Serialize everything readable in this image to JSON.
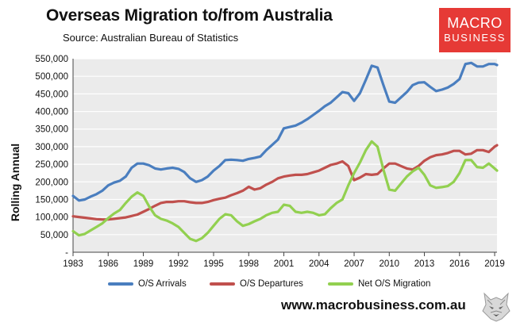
{
  "chart_data": {
    "type": "line",
    "title": "Overseas Migration to/from Australia",
    "subtitle": "Source: Australian Bureau of Statistics",
    "xlabel": "",
    "ylabel": "Rolling Annual",
    "xlim": [
      1983,
      2019.2
    ],
    "ylim": [
      0,
      550000
    ],
    "grid": true,
    "legend_position": "bottom",
    "x_ticks": [
      "1983",
      "1986",
      "1989",
      "1992",
      "1995",
      "1998",
      "2001",
      "2004",
      "2007",
      "2010",
      "2013",
      "2016",
      "2019"
    ],
    "y_ticks": [
      "-",
      "50,000",
      "100,000",
      "150,000",
      "200,000",
      "250,000",
      "300,000",
      "350,000",
      "400,000",
      "450,000",
      "500,000",
      "550,000"
    ],
    "series": [
      {
        "name": "O/S Arrivals",
        "color": "#4a7ebf",
        "points": [
          [
            1983,
            160000
          ],
          [
            1983.5,
            147000
          ],
          [
            1984,
            150000
          ],
          [
            1984.5,
            158000
          ],
          [
            1985,
            165000
          ],
          [
            1985.5,
            175000
          ],
          [
            1986,
            190000
          ],
          [
            1986.5,
            198000
          ],
          [
            1987,
            203000
          ],
          [
            1987.5,
            215000
          ],
          [
            1988,
            240000
          ],
          [
            1988.5,
            252000
          ],
          [
            1989,
            252000
          ],
          [
            1989.5,
            247000
          ],
          [
            1990,
            238000
          ],
          [
            1990.5,
            235000
          ],
          [
            1991,
            238000
          ],
          [
            1991.5,
            240000
          ],
          [
            1992,
            237000
          ],
          [
            1992.5,
            228000
          ],
          [
            1993,
            210000
          ],
          [
            1993.5,
            200000
          ],
          [
            1994,
            205000
          ],
          [
            1994.5,
            215000
          ],
          [
            1995,
            232000
          ],
          [
            1995.5,
            245000
          ],
          [
            1996,
            262000
          ],
          [
            1996.5,
            263000
          ],
          [
            1997,
            262000
          ],
          [
            1997.5,
            260000
          ],
          [
            1998,
            265000
          ],
          [
            1998.5,
            268000
          ],
          [
            1999,
            272000
          ],
          [
            1999.5,
            290000
          ],
          [
            2000,
            305000
          ],
          [
            2000.5,
            320000
          ],
          [
            2001,
            352000
          ],
          [
            2001.5,
            356000
          ],
          [
            2002,
            360000
          ],
          [
            2002.5,
            368000
          ],
          [
            2003,
            378000
          ],
          [
            2003.5,
            390000
          ],
          [
            2004,
            402000
          ],
          [
            2004.5,
            415000
          ],
          [
            2005,
            425000
          ],
          [
            2005.5,
            440000
          ],
          [
            2006,
            455000
          ],
          [
            2006.5,
            452000
          ],
          [
            2007,
            430000
          ],
          [
            2007.5,
            452000
          ],
          [
            2008,
            490000
          ],
          [
            2008.5,
            530000
          ],
          [
            2009,
            525000
          ],
          [
            2009.5,
            475000
          ],
          [
            2010,
            428000
          ],
          [
            2010.5,
            425000
          ],
          [
            2011,
            440000
          ],
          [
            2011.5,
            455000
          ],
          [
            2012,
            475000
          ],
          [
            2012.5,
            482000
          ],
          [
            2013,
            483000
          ],
          [
            2013.5,
            470000
          ],
          [
            2014,
            458000
          ],
          [
            2014.5,
            462000
          ],
          [
            2015,
            468000
          ],
          [
            2015.5,
            478000
          ],
          [
            2016,
            492000
          ],
          [
            2016.5,
            535000
          ],
          [
            2017,
            538000
          ],
          [
            2017.5,
            528000
          ],
          [
            2018,
            528000
          ],
          [
            2018.5,
            535000
          ],
          [
            2019,
            535000
          ],
          [
            2019.2,
            532000
          ]
        ]
      },
      {
        "name": "O/S Departures",
        "color": "#c0504d",
        "points": [
          [
            1983,
            102000
          ],
          [
            1983.5,
            100000
          ],
          [
            1984,
            98000
          ],
          [
            1984.5,
            96000
          ],
          [
            1985,
            94000
          ],
          [
            1985.5,
            93000
          ],
          [
            1986,
            93000
          ],
          [
            1986.5,
            95000
          ],
          [
            1987,
            97000
          ],
          [
            1987.5,
            99000
          ],
          [
            1988,
            103000
          ],
          [
            1988.5,
            107000
          ],
          [
            1989,
            115000
          ],
          [
            1989.5,
            123000
          ],
          [
            1990,
            132000
          ],
          [
            1990.5,
            140000
          ],
          [
            1991,
            143000
          ],
          [
            1991.5,
            143000
          ],
          [
            1992,
            145000
          ],
          [
            1992.5,
            145000
          ],
          [
            1993,
            142000
          ],
          [
            1993.5,
            140000
          ],
          [
            1994,
            140000
          ],
          [
            1994.5,
            143000
          ],
          [
            1995,
            148000
          ],
          [
            1995.5,
            152000
          ],
          [
            1996,
            155000
          ],
          [
            1996.5,
            162000
          ],
          [
            1997,
            168000
          ],
          [
            1997.5,
            175000
          ],
          [
            1998,
            186000
          ],
          [
            1998.5,
            178000
          ],
          [
            1999,
            182000
          ],
          [
            1999.5,
            192000
          ],
          [
            2000,
            200000
          ],
          [
            2000.5,
            210000
          ],
          [
            2001,
            215000
          ],
          [
            2001.5,
            218000
          ],
          [
            2002,
            220000
          ],
          [
            2002.5,
            220000
          ],
          [
            2003,
            222000
          ],
          [
            2003.5,
            227000
          ],
          [
            2004,
            232000
          ],
          [
            2004.5,
            240000
          ],
          [
            2005,
            248000
          ],
          [
            2005.5,
            252000
          ],
          [
            2006,
            258000
          ],
          [
            2006.5,
            245000
          ],
          [
            2007,
            205000
          ],
          [
            2007.5,
            212000
          ],
          [
            2008,
            222000
          ],
          [
            2008.5,
            220000
          ],
          [
            2009,
            222000
          ],
          [
            2009.5,
            238000
          ],
          [
            2010,
            252000
          ],
          [
            2010.5,
            252000
          ],
          [
            2011,
            245000
          ],
          [
            2011.5,
            238000
          ],
          [
            2012,
            235000
          ],
          [
            2012.5,
            245000
          ],
          [
            2013,
            260000
          ],
          [
            2013.5,
            270000
          ],
          [
            2014,
            276000
          ],
          [
            2014.5,
            278000
          ],
          [
            2015,
            282000
          ],
          [
            2015.5,
            288000
          ],
          [
            2016,
            288000
          ],
          [
            2016.5,
            278000
          ],
          [
            2017,
            280000
          ],
          [
            2017.5,
            290000
          ],
          [
            2018,
            290000
          ],
          [
            2018.5,
            285000
          ],
          [
            2019,
            300000
          ],
          [
            2019.2,
            304000
          ]
        ]
      },
      {
        "name": "Net O/S Migration",
        "color": "#92d050",
        "points": [
          [
            1983,
            60000
          ],
          [
            1983.5,
            48000
          ],
          [
            1984,
            52000
          ],
          [
            1984.5,
            62000
          ],
          [
            1985,
            72000
          ],
          [
            1985.5,
            82000
          ],
          [
            1986,
            97000
          ],
          [
            1986.5,
            110000
          ],
          [
            1987,
            120000
          ],
          [
            1987.5,
            140000
          ],
          [
            1988,
            158000
          ],
          [
            1988.5,
            170000
          ],
          [
            1989,
            160000
          ],
          [
            1989.5,
            130000
          ],
          [
            1990,
            105000
          ],
          [
            1990.5,
            95000
          ],
          [
            1991,
            90000
          ],
          [
            1991.5,
            82000
          ],
          [
            1992,
            72000
          ],
          [
            1992.5,
            55000
          ],
          [
            1993,
            38000
          ],
          [
            1993.5,
            32000
          ],
          [
            1994,
            40000
          ],
          [
            1994.5,
            55000
          ],
          [
            1995,
            75000
          ],
          [
            1995.5,
            95000
          ],
          [
            1996,
            108000
          ],
          [
            1996.5,
            105000
          ],
          [
            1997,
            88000
          ],
          [
            1997.5,
            75000
          ],
          [
            1998,
            80000
          ],
          [
            1998.5,
            88000
          ],
          [
            1999,
            95000
          ],
          [
            1999.5,
            105000
          ],
          [
            2000,
            112000
          ],
          [
            2000.5,
            115000
          ],
          [
            2001,
            135000
          ],
          [
            2001.5,
            132000
          ],
          [
            2002,
            115000
          ],
          [
            2002.5,
            112000
          ],
          [
            2003,
            115000
          ],
          [
            2003.5,
            112000
          ],
          [
            2004,
            105000
          ],
          [
            2004.5,
            108000
          ],
          [
            2005,
            125000
          ],
          [
            2005.5,
            140000
          ],
          [
            2006,
            150000
          ],
          [
            2006.5,
            190000
          ],
          [
            2007,
            225000
          ],
          [
            2007.5,
            255000
          ],
          [
            2008,
            290000
          ],
          [
            2008.5,
            315000
          ],
          [
            2009,
            300000
          ],
          [
            2009.5,
            235000
          ],
          [
            2010,
            178000
          ],
          [
            2010.5,
            175000
          ],
          [
            2011,
            195000
          ],
          [
            2011.5,
            215000
          ],
          [
            2012,
            230000
          ],
          [
            2012.5,
            240000
          ],
          [
            2013,
            220000
          ],
          [
            2013.5,
            190000
          ],
          [
            2014,
            183000
          ],
          [
            2014.5,
            185000
          ],
          [
            2015,
            188000
          ],
          [
            2015.5,
            200000
          ],
          [
            2016,
            225000
          ],
          [
            2016.5,
            262000
          ],
          [
            2017,
            262000
          ],
          [
            2017.5,
            242000
          ],
          [
            2018,
            240000
          ],
          [
            2018.5,
            252000
          ],
          [
            2019,
            238000
          ],
          [
            2019.2,
            232000
          ]
        ]
      }
    ]
  },
  "branding": {
    "logo_line1": "MACRO",
    "logo_line2": "BUSINESS",
    "website": "www.macrobusiness.com.au",
    "logo_color": "#e63a36"
  }
}
